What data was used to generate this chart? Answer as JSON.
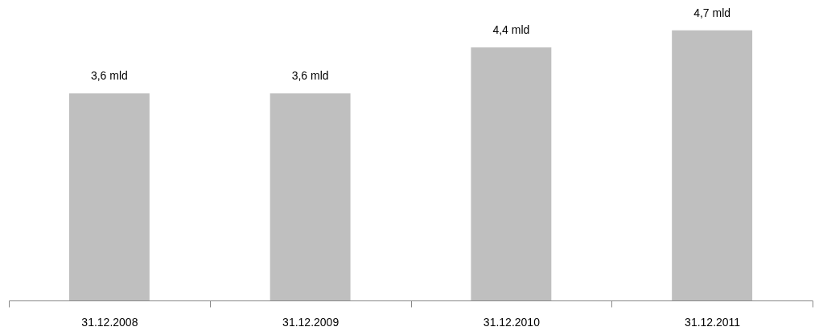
{
  "chart_data": {
    "type": "bar",
    "categories": [
      "31.12.2008",
      "31.12.2009",
      "31.12.2010",
      "31.12.2011"
    ],
    "values": [
      3.6,
      3.6,
      4.4,
      4.7
    ],
    "value_labels": [
      "3,6 mld",
      "3,6 mld",
      "4,4 mld",
      "4,7 mld"
    ],
    "color": "#bfbfbf"
  }
}
